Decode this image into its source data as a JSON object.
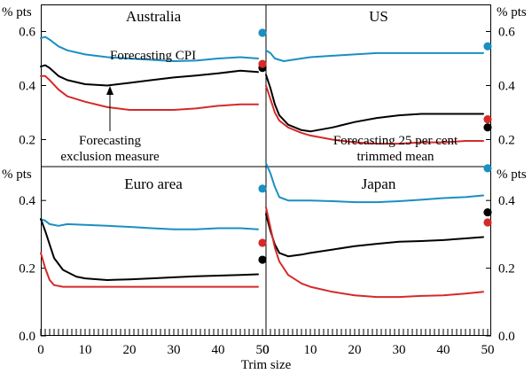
{
  "colors": {
    "cpi": "#1a8fc2",
    "exclusion": "#000000",
    "trimmed": "#d42a2a",
    "frame": "#000000"
  },
  "chart_data": {
    "type": "line",
    "xlabel": "Trim size",
    "xlim": [
      0,
      50
    ],
    "x_ticks": [
      "0",
      "10",
      "20",
      "30",
      "40",
      "50"
    ],
    "unit_label": "% pts",
    "series_names": {
      "cpi": "Forecasting CPI",
      "exclusion": "Forecasting exclusion measure",
      "trimmed": "Forecasting 25 per cent trimmed mean"
    },
    "panels": [
      {
        "id": "australia",
        "title": "Australia",
        "ylim": [
          0.1,
          0.7
        ],
        "y_ticks": [
          "0.2",
          "0.4",
          "0.6"
        ],
        "tick_side": "left",
        "series": {
          "cpi": [
            [
              0,
              0.575
            ],
            [
              1,
              0.58
            ],
            [
              2,
              0.57
            ],
            [
              4,
              0.545
            ],
            [
              6,
              0.53
            ],
            [
              10,
              0.515
            ],
            [
              15,
              0.505
            ],
            [
              20,
              0.5
            ],
            [
              25,
              0.495
            ],
            [
              30,
              0.49
            ],
            [
              35,
              0.492
            ],
            [
              40,
              0.5
            ],
            [
              45,
              0.505
            ],
            [
              49,
              0.5
            ]
          ],
          "exclusion": [
            [
              0,
              0.47
            ],
            [
              1,
              0.475
            ],
            [
              2,
              0.465
            ],
            [
              4,
              0.435
            ],
            [
              6,
              0.42
            ],
            [
              10,
              0.405
            ],
            [
              15,
              0.4
            ],
            [
              20,
              0.41
            ],
            [
              25,
              0.42
            ],
            [
              30,
              0.43
            ],
            [
              35,
              0.437
            ],
            [
              40,
              0.445
            ],
            [
              45,
              0.455
            ],
            [
              49,
              0.45
            ]
          ],
          "trimmed": [
            [
              0,
              0.435
            ],
            [
              1,
              0.435
            ],
            [
              2,
              0.42
            ],
            [
              4,
              0.385
            ],
            [
              6,
              0.36
            ],
            [
              10,
              0.34
            ],
            [
              15,
              0.32
            ],
            [
              20,
              0.31
            ],
            [
              25,
              0.31
            ],
            [
              30,
              0.31
            ],
            [
              35,
              0.315
            ],
            [
              40,
              0.325
            ],
            [
              45,
              0.33
            ],
            [
              49,
              0.33
            ]
          ]
        },
        "dots": {
          "cpi": 0.595,
          "exclusion": 0.465,
          "trimmed": 0.48
        }
      },
      {
        "id": "us",
        "title": "US",
        "ylim": [
          0.1,
          0.7
        ],
        "y_ticks": [
          "0.2",
          "0.4",
          "0.6"
        ],
        "tick_side": "right",
        "series": {
          "cpi": [
            [
              0,
              0.53
            ],
            [
              1,
              0.52
            ],
            [
              2,
              0.5
            ],
            [
              4,
              0.49
            ],
            [
              6,
              0.495
            ],
            [
              10,
              0.505
            ],
            [
              15,
              0.51
            ],
            [
              20,
              0.515
            ],
            [
              25,
              0.52
            ],
            [
              30,
              0.52
            ],
            [
              35,
              0.52
            ],
            [
              40,
              0.52
            ],
            [
              45,
              0.52
            ],
            [
              49,
              0.52
            ]
          ],
          "exclusion": [
            [
              0,
              0.44
            ],
            [
              1,
              0.39
            ],
            [
              2,
              0.33
            ],
            [
              3,
              0.29
            ],
            [
              5,
              0.255
            ],
            [
              8,
              0.235
            ],
            [
              10,
              0.23
            ],
            [
              15,
              0.245
            ],
            [
              20,
              0.265
            ],
            [
              25,
              0.28
            ],
            [
              30,
              0.29
            ],
            [
              35,
              0.295
            ],
            [
              40,
              0.295
            ],
            [
              45,
              0.295
            ],
            [
              49,
              0.295
            ]
          ],
          "trimmed": [
            [
              0,
              0.4
            ],
            [
              1,
              0.35
            ],
            [
              2,
              0.3
            ],
            [
              3,
              0.27
            ],
            [
              5,
              0.245
            ],
            [
              8,
              0.225
            ],
            [
              10,
              0.215
            ],
            [
              15,
              0.2
            ],
            [
              20,
              0.19
            ],
            [
              25,
              0.185
            ],
            [
              30,
              0.185
            ],
            [
              35,
              0.19
            ],
            [
              40,
              0.19
            ],
            [
              45,
              0.195
            ],
            [
              49,
              0.195
            ]
          ]
        },
        "dots": {
          "cpi": 0.545,
          "exclusion": 0.245,
          "trimmed": 0.275
        }
      },
      {
        "id": "euro",
        "title": "Euro area",
        "ylim": [
          0.0,
          0.5
        ],
        "y_ticks": [
          "0.0",
          "0.2",
          "0.4"
        ],
        "tick_side": "left",
        "series": {
          "cpi": [
            [
              0,
              0.345
            ],
            [
              1,
              0.34
            ],
            [
              2,
              0.33
            ],
            [
              4,
              0.325
            ],
            [
              6,
              0.33
            ],
            [
              10,
              0.328
            ],
            [
              15,
              0.325
            ],
            [
              20,
              0.322
            ],
            [
              25,
              0.318
            ],
            [
              30,
              0.315
            ],
            [
              35,
              0.315
            ],
            [
              40,
              0.318
            ],
            [
              45,
              0.318
            ],
            [
              49,
              0.315
            ]
          ],
          "exclusion": [
            [
              0,
              0.345
            ],
            [
              1,
              0.31
            ],
            [
              2,
              0.27
            ],
            [
              3,
              0.23
            ],
            [
              5,
              0.195
            ],
            [
              8,
              0.175
            ],
            [
              10,
              0.17
            ],
            [
              15,
              0.165
            ],
            [
              20,
              0.167
            ],
            [
              25,
              0.17
            ],
            [
              30,
              0.173
            ],
            [
              35,
              0.176
            ],
            [
              40,
              0.178
            ],
            [
              45,
              0.18
            ],
            [
              49,
              0.182
            ]
          ],
          "trimmed": [
            [
              0,
              0.245
            ],
            [
              1,
              0.2
            ],
            [
              2,
              0.165
            ],
            [
              3,
              0.15
            ],
            [
              5,
              0.145
            ],
            [
              8,
              0.145
            ],
            [
              10,
              0.145
            ],
            [
              15,
              0.145
            ],
            [
              20,
              0.145
            ],
            [
              25,
              0.145
            ],
            [
              30,
              0.145
            ],
            [
              35,
              0.145
            ],
            [
              40,
              0.145
            ],
            [
              45,
              0.145
            ],
            [
              49,
              0.145
            ]
          ]
        },
        "dots": {
          "cpi": 0.435,
          "exclusion": 0.225,
          "trimmed": 0.275
        }
      },
      {
        "id": "japan",
        "title": "Japan",
        "ylim": [
          0.0,
          0.5
        ],
        "y_ticks": [
          "0.0",
          "0.2",
          "0.4"
        ],
        "tick_side": "right",
        "series": {
          "cpi": [
            [
              0,
              0.51
            ],
            [
              1,
              0.48
            ],
            [
              2,
              0.44
            ],
            [
              3,
              0.41
            ],
            [
              5,
              0.4
            ],
            [
              8,
              0.4
            ],
            [
              10,
              0.4
            ],
            [
              15,
              0.398
            ],
            [
              20,
              0.395
            ],
            [
              25,
              0.395
            ],
            [
              30,
              0.398
            ],
            [
              35,
              0.402
            ],
            [
              40,
              0.407
            ],
            [
              45,
              0.41
            ],
            [
              49,
              0.415
            ]
          ],
          "exclusion": [
            [
              0,
              0.36
            ],
            [
              1,
              0.31
            ],
            [
              2,
              0.27
            ],
            [
              3,
              0.245
            ],
            [
              5,
              0.235
            ],
            [
              8,
              0.24
            ],
            [
              10,
              0.245
            ],
            [
              15,
              0.255
            ],
            [
              20,
              0.265
            ],
            [
              25,
              0.272
            ],
            [
              30,
              0.278
            ],
            [
              35,
              0.28
            ],
            [
              40,
              0.283
            ],
            [
              45,
              0.288
            ],
            [
              49,
              0.292
            ]
          ],
          "trimmed": [
            [
              0,
              0.38
            ],
            [
              1,
              0.32
            ],
            [
              2,
              0.26
            ],
            [
              3,
              0.22
            ],
            [
              5,
              0.18
            ],
            [
              8,
              0.155
            ],
            [
              10,
              0.145
            ],
            [
              15,
              0.13
            ],
            [
              20,
              0.12
            ],
            [
              25,
              0.115
            ],
            [
              30,
              0.115
            ],
            [
              35,
              0.118
            ],
            [
              40,
              0.12
            ],
            [
              45,
              0.125
            ],
            [
              49,
              0.13
            ]
          ]
        },
        "dots": {
          "cpi": 0.495,
          "exclusion": 0.365,
          "trimmed": 0.335
        }
      }
    ],
    "annotations": {
      "cpi_label": "Forecasting CPI",
      "exclusion_line1": "Forecasting",
      "exclusion_line2": "exclusion measure",
      "trimmed_line1": "Forecasting 25 per cent",
      "trimmed_line2": "trimmed mean"
    }
  }
}
